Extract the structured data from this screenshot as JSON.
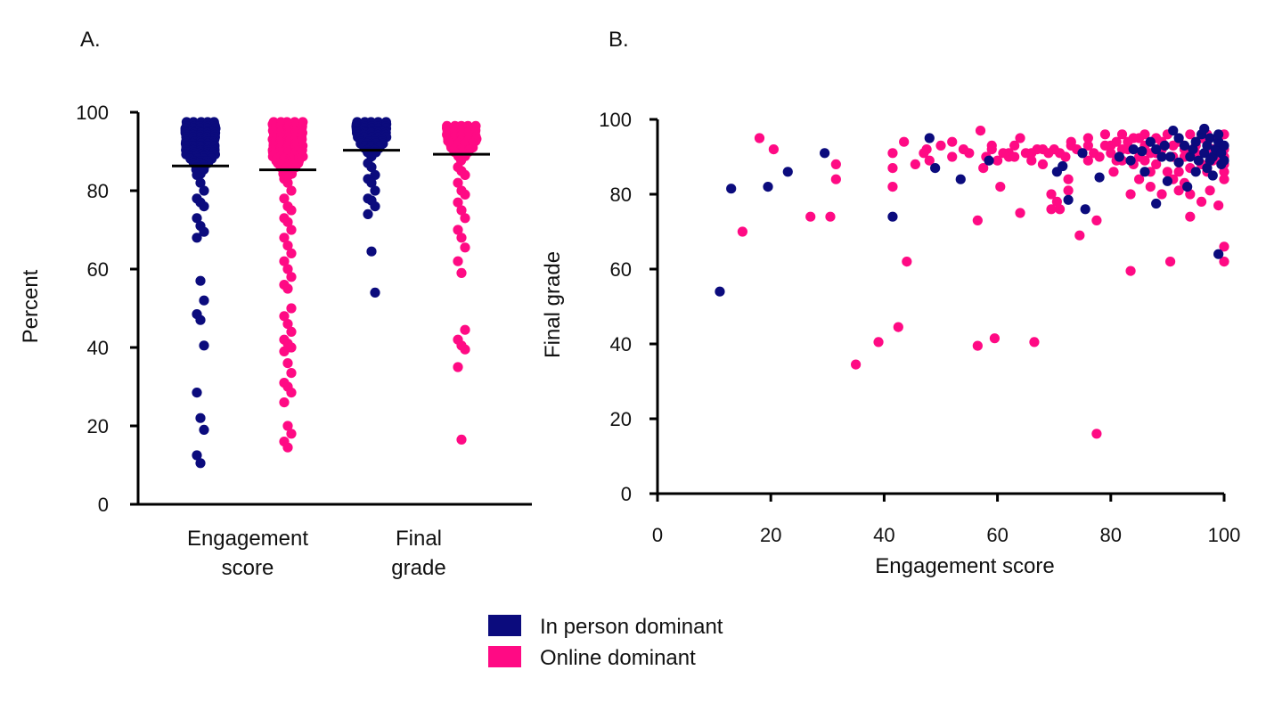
{
  "colors": {
    "in_person": "#0b0b7d",
    "online": "#ff0a84"
  },
  "legend": [
    {
      "label": "In person dominant",
      "color": "#0b0b7d"
    },
    {
      "label": "Online dominant",
      "color": "#ff0a84"
    }
  ],
  "chart_data": [
    {
      "panel": "A.",
      "type": "scatter",
      "ylabel": "Percent",
      "ylim": [
        0,
        100
      ],
      "yticks": [
        "0",
        "20",
        "40",
        "60",
        "80",
        "100"
      ],
      "groups": [
        {
          "label_lines": [
            "Engagement",
            "score"
          ]
        },
        {
          "label_lines": [
            "Final",
            "grade"
          ]
        }
      ],
      "series": [
        {
          "group": 0,
          "color_key": "in_person",
          "median": 86.3,
          "outliers": [
            84,
            82,
            80,
            78,
            77,
            76,
            73,
            71,
            69.5,
            68,
            57,
            52,
            48.5,
            47,
            40.5,
            28.5,
            22,
            19,
            12.5,
            10.5
          ]
        },
        {
          "group": 0,
          "color_key": "online",
          "median": 85.3,
          "outliers": [
            83,
            82,
            80,
            78,
            76,
            75,
            73,
            72,
            70,
            68,
            66,
            64,
            62,
            60,
            58,
            56,
            55,
            50,
            48,
            46,
            44,
            42,
            41,
            40,
            39,
            36,
            33.5,
            31,
            30,
            28.5,
            26,
            20,
            18,
            16,
            14.5
          ]
        },
        {
          "group": 1,
          "color_key": "in_person",
          "median": 90.3,
          "outliers": [
            87,
            86,
            84,
            83,
            82,
            80,
            78,
            77.5,
            76,
            74,
            64.5,
            54
          ]
        },
        {
          "group": 1,
          "color_key": "online",
          "median": 89.3,
          "outliers": [
            86,
            85,
            84,
            82,
            80,
            79,
            77,
            75,
            73,
            70,
            68,
            65.5,
            62,
            59,
            44.5,
            42,
            40.5,
            39.5,
            35,
            16.5
          ]
        }
      ]
    },
    {
      "panel": "B.",
      "type": "scatter",
      "xlabel": "Engagement score",
      "ylabel": "Final grade",
      "xlim": [
        0,
        100
      ],
      "ylim": [
        0,
        100
      ],
      "xticks": [
        "0",
        "20",
        "40",
        "60",
        "80",
        "100"
      ],
      "yticks": [
        "0",
        "20",
        "40",
        "60",
        "80",
        "100"
      ],
      "series": [
        {
          "color_key": "online",
          "points": [
            [
              18,
              95
            ],
            [
              20.5,
              92
            ],
            [
              27,
              74
            ],
            [
              30.5,
              74
            ],
            [
              31.5,
              88
            ],
            [
              31.5,
              84
            ],
            [
              15,
              70
            ],
            [
              35,
              34.5
            ],
            [
              39,
              40.5
            ],
            [
              42.5,
              44.5
            ],
            [
              44,
              62
            ],
            [
              41.5,
              91
            ],
            [
              41.5,
              87
            ],
            [
              41.5,
              82
            ],
            [
              43.5,
              94
            ],
            [
              45.5,
              88
            ],
            [
              47.5,
              92
            ],
            [
              52,
              94
            ],
            [
              52,
              90
            ],
            [
              56.5,
              73
            ],
            [
              56.5,
              39.5
            ],
            [
              57.5,
              87
            ],
            [
              59.5,
              41.5
            ],
            [
              60.5,
              82
            ],
            [
              59,
              93
            ],
            [
              62,
              90
            ],
            [
              63,
              93
            ],
            [
              64,
              95
            ],
            [
              64,
              75
            ],
            [
              66.5,
              40.5
            ],
            [
              68,
              88
            ],
            [
              69.5,
              80
            ],
            [
              69.5,
              76
            ],
            [
              70.5,
              78
            ],
            [
              71,
              76
            ],
            [
              72.5,
              84
            ],
            [
              72.5,
              81
            ],
            [
              74.5,
              69
            ],
            [
              76,
              89
            ],
            [
              77.5,
              73
            ],
            [
              77.5,
              16
            ],
            [
              80,
              93
            ],
            [
              80.5,
              86
            ],
            [
              81,
              89
            ],
            [
              82,
              92
            ],
            [
              83.5,
              80
            ],
            [
              83.5,
              59.5
            ],
            [
              85,
              84
            ],
            [
              87,
              82
            ],
            [
              87,
              86
            ],
            [
              88,
              91
            ],
            [
              89,
              80
            ],
            [
              90,
              86
            ],
            [
              90.5,
              62
            ],
            [
              91,
              84
            ],
            [
              92,
              81
            ],
            [
              93,
              83
            ],
            [
              94,
              74
            ],
            [
              94,
              80
            ],
            [
              96,
              78
            ],
            [
              97,
              86
            ],
            [
              97.5,
              81
            ],
            [
              99,
              77
            ],
            [
              100,
              84
            ],
            [
              100,
              62
            ],
            [
              100,
              66
            ],
            [
              100,
              88
            ],
            [
              99,
              90
            ],
            [
              98,
              92
            ],
            [
              96,
              95
            ],
            [
              92,
              94
            ],
            [
              88,
              95
            ],
            [
              85,
              95
            ],
            [
              82,
              96
            ],
            [
              79,
              96
            ],
            [
              76,
              95
            ],
            [
              73,
              93
            ],
            [
              70,
              92
            ],
            [
              67,
              92
            ],
            [
              65,
              91
            ],
            [
              62,
              91
            ],
            [
              59,
              92
            ],
            [
              57,
              97
            ],
            [
              55,
              91
            ],
            [
              50,
              93
            ],
            [
              48,
              89
            ],
            [
              47,
              91
            ],
            [
              60,
              89
            ],
            [
              63,
              90
            ],
            [
              66,
              91
            ],
            [
              68,
              92
            ],
            [
              71,
              91
            ],
            [
              74,
              92
            ],
            [
              77,
              91
            ],
            [
              80,
              91
            ],
            [
              83,
              92
            ],
            [
              86,
              93
            ],
            [
              89,
              94
            ],
            [
              91,
              93
            ],
            [
              93,
              92
            ],
            [
              95,
              93
            ],
            [
              97,
              94
            ],
            [
              99,
              95
            ],
            [
              100,
              96
            ],
            [
              100,
              92
            ],
            [
              98,
              89
            ],
            [
              96,
              88
            ],
            [
              94,
              87
            ],
            [
              92,
              86
            ],
            [
              88,
              88
            ],
            [
              86,
              89
            ],
            [
              84,
              88
            ],
            [
              82,
              89
            ],
            [
              78,
              90
            ],
            [
              75,
              91
            ],
            [
              72,
              90
            ],
            [
              69,
              91
            ],
            [
              66,
              89
            ],
            [
              61,
              91
            ],
            [
              58,
              90
            ],
            [
              54,
              92
            ],
            [
              84,
              95
            ],
            [
              86,
              96
            ],
            [
              90,
              96
            ],
            [
              94,
              96
            ],
            [
              97,
              96
            ],
            [
              87,
              91
            ],
            [
              93,
              90
            ],
            [
              95,
              91
            ],
            [
              79,
              93
            ],
            [
              81,
              94
            ],
            [
              73,
              94
            ],
            [
              76,
              93
            ],
            [
              85,
              90
            ],
            [
              89,
              92
            ],
            [
              91,
              90
            ],
            [
              83,
              94
            ],
            [
              100,
              90
            ],
            [
              100,
              86
            ]
          ]
        },
        {
          "color_key": "in_person",
          "points": [
            [
              11,
              54
            ],
            [
              13,
              81.5
            ],
            [
              19.5,
              82
            ],
            [
              23,
              86
            ],
            [
              29.5,
              91
            ],
            [
              41.5,
              74
            ],
            [
              48,
              95
            ],
            [
              49,
              87
            ],
            [
              53.5,
              84
            ],
            [
              58.5,
              89
            ],
            [
              70.5,
              86
            ],
            [
              71.5,
              87.5
            ],
            [
              72.5,
              78.5
            ],
            [
              75,
              91
            ],
            [
              75.5,
              76
            ],
            [
              78,
              84.5
            ],
            [
              81.5,
              90
            ],
            [
              83.5,
              89
            ],
            [
              84,
              92
            ],
            [
              85.5,
              91.5
            ],
            [
              86,
              86
            ],
            [
              87,
              94
            ],
            [
              88,
              77.5
            ],
            [
              88,
              92
            ],
            [
              89,
              90
            ],
            [
              89.5,
              93
            ],
            [
              90,
              83.5
            ],
            [
              90.5,
              90
            ],
            [
              91,
              97
            ],
            [
              92,
              95
            ],
            [
              93,
              93
            ],
            [
              93.5,
              82
            ],
            [
              94,
              90
            ],
            [
              94.5,
              92
            ],
            [
              95,
              94
            ],
            [
              95.5,
              89
            ],
            [
              96,
              96
            ],
            [
              96.5,
              91
            ],
            [
              97,
              93
            ],
            [
              97,
              87
            ],
            [
              97.5,
              95
            ],
            [
              98,
              90
            ],
            [
              98,
              85
            ],
            [
              98.5,
              92
            ],
            [
              99,
              64
            ],
            [
              99,
              94
            ],
            [
              99.5,
              88
            ],
            [
              99.5,
              91
            ],
            [
              100,
              93
            ],
            [
              100,
              89
            ],
            [
              96.5,
              97.5
            ],
            [
              95,
              86
            ],
            [
              92,
              88.5
            ],
            [
              97.5,
              89
            ],
            [
              99,
              96
            ]
          ]
        }
      ]
    }
  ]
}
